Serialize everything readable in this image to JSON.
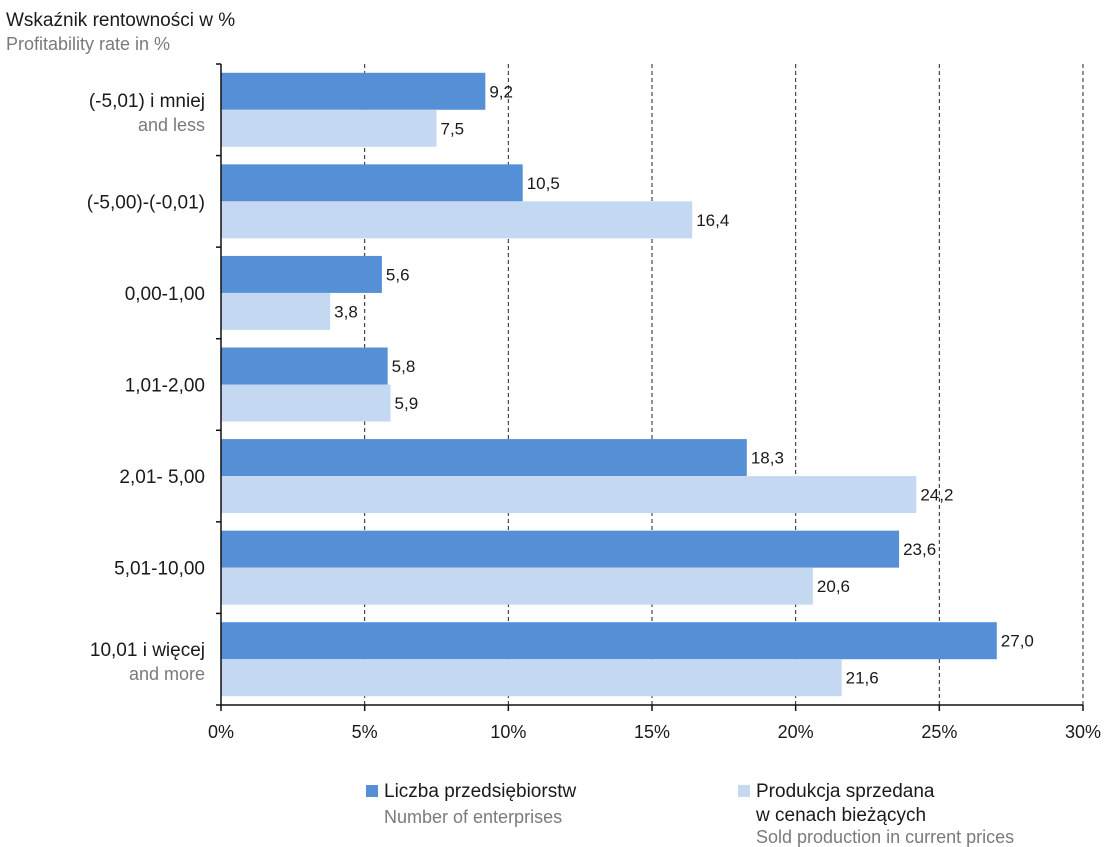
{
  "chart_data": {
    "type": "bar",
    "orientation": "horizontal",
    "title": "Wskaźnik rentowności w %",
    "subtitle": "Profitability rate in %",
    "categories": [
      {
        "label": "(-5,01) i mniej",
        "sublabel": "and less"
      },
      {
        "label": "(-5,00)-(-0,01)",
        "sublabel": ""
      },
      {
        "label": "0,00-1,00",
        "sublabel": ""
      },
      {
        "label": "1,01-2,00",
        "sublabel": ""
      },
      {
        "label": "2,01- 5,00",
        "sublabel": ""
      },
      {
        "label": "5,01-10,00",
        "sublabel": ""
      },
      {
        "label": "10,01 i więcej",
        "sublabel": "and more"
      }
    ],
    "series": [
      {
        "name": "Liczba przedsiębiorstw",
        "name_en": "Number of enterprises",
        "color": "#5590d6",
        "values": [
          9.2,
          10.5,
          5.6,
          5.8,
          18.3,
          23.6,
          27.0
        ],
        "labels": [
          "9,2",
          "10,5",
          "5,6",
          "5,8",
          "18,3",
          "23,6",
          "27,0"
        ]
      },
      {
        "name": "Produkcja sprzedana",
        "name_line2": "w cenach bieżących",
        "name_en": "Sold production in current prices",
        "color": "#c5d8f1",
        "values": [
          7.5,
          16.4,
          3.8,
          5.9,
          24.2,
          20.6,
          21.6
        ],
        "labels": [
          "7,5",
          "16,4",
          "3,8",
          "5,9",
          "24,2",
          "20,6",
          "21,6"
        ]
      }
    ],
    "xlim": [
      0,
      30
    ],
    "xticks": [
      0,
      5,
      10,
      15,
      20,
      25,
      30
    ],
    "xtick_labels": [
      "0%",
      "5%",
      "10%",
      "15%",
      "20%",
      "25%",
      "30%"
    ],
    "grid": "vertical-dashed",
    "legend_position": "bottom"
  }
}
